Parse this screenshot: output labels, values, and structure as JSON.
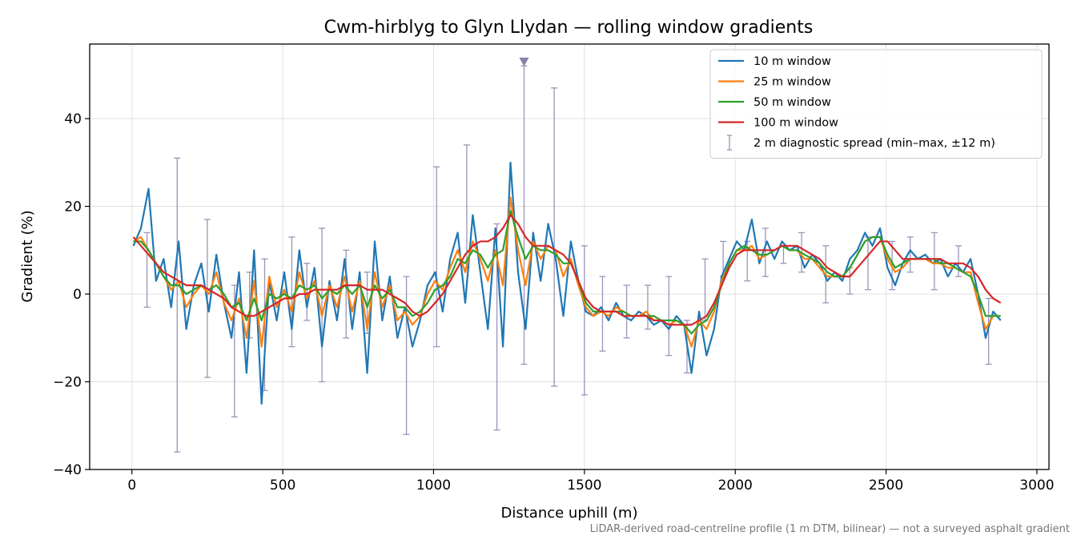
{
  "chart_data": {
    "type": "line",
    "title": "Cwm-hirblyg to Glyn Llydan — rolling window gradients",
    "xlabel": "Distance uphill (m)",
    "ylabel": "Gradient (%)",
    "footnote": "LiDAR-derived road-centreline profile (1 m DTM, bilinear) — not a surveyed asphalt gradient",
    "xlim": [
      -140,
      3040
    ],
    "ylim": [
      -40,
      57
    ],
    "x_ticks": [
      0,
      500,
      1000,
      1500,
      2000,
      2500,
      3000
    ],
    "x_tick_labels": [
      "0",
      "500",
      "1000",
      "1500",
      "2000",
      "2500",
      "3000"
    ],
    "y_ticks": [
      -40,
      -20,
      0,
      20,
      40
    ],
    "y_tick_labels": [
      "−40",
      "−20",
      "0",
      "20",
      "40"
    ],
    "grid": true,
    "legend_position": "top-right",
    "x": [
      5,
      30,
      55,
      80,
      105,
      130,
      155,
      180,
      205,
      230,
      255,
      280,
      305,
      330,
      355,
      380,
      405,
      430,
      455,
      480,
      505,
      530,
      555,
      580,
      605,
      630,
      655,
      680,
      705,
      730,
      755,
      780,
      805,
      830,
      855,
      880,
      905,
      930,
      955,
      980,
      1005,
      1030,
      1055,
      1080,
      1105,
      1130,
      1155,
      1180,
      1205,
      1230,
      1255,
      1280,
      1305,
      1330,
      1355,
      1380,
      1405,
      1430,
      1455,
      1480,
      1505,
      1530,
      1555,
      1580,
      1605,
      1630,
      1655,
      1680,
      1705,
      1730,
      1755,
      1780,
      1805,
      1830,
      1855,
      1880,
      1905,
      1930,
      1955,
      1980,
      2005,
      2030,
      2055,
      2080,
      2105,
      2130,
      2155,
      2180,
      2205,
      2230,
      2255,
      2280,
      2305,
      2330,
      2355,
      2380,
      2405,
      2430,
      2455,
      2480,
      2505,
      2530,
      2555,
      2580,
      2605,
      2630,
      2655,
      2680,
      2705,
      2730,
      2755,
      2780,
      2805,
      2830,
      2855,
      2880
    ],
    "series": [
      {
        "name": "10 m window",
        "color": "#1f77b4",
        "values": [
          11,
          15,
          24,
          3,
          8,
          -3,
          12,
          -8,
          2,
          7,
          -4,
          9,
          -2,
          -10,
          5,
          -18,
          10,
          -25,
          3,
          -6,
          5,
          -8,
          10,
          -3,
          6,
          -12,
          3,
          -6,
          8,
          -8,
          5,
          -18,
          12,
          -6,
          4,
          -10,
          -3,
          -12,
          -6,
          2,
          5,
          -4,
          8,
          14,
          -2,
          18,
          5,
          -8,
          15,
          -12,
          30,
          5,
          -8,
          14,
          3,
          16,
          8,
          -5,
          12,
          3,
          -4,
          -5,
          -3,
          -6,
          -2,
          -5,
          -6,
          -4,
          -5,
          -7,
          -6,
          -8,
          -5,
          -7,
          -18,
          -4,
          -14,
          -8,
          4,
          8,
          12,
          10,
          17,
          7,
          12,
          8,
          12,
          10,
          11,
          6,
          9,
          7,
          3,
          5,
          3,
          8,
          10,
          14,
          11,
          15,
          6,
          2,
          7,
          10,
          8,
          9,
          7,
          8,
          4,
          7,
          5,
          8,
          0,
          -10,
          -4,
          -6
        ]
      },
      {
        "name": "25 m window",
        "color": "#ff7f0e",
        "values": [
          12,
          13,
          10,
          7,
          4,
          1,
          3,
          -3,
          0,
          2,
          0,
          5,
          -2,
          -6,
          -1,
          -10,
          3,
          -12,
          4,
          -3,
          1,
          -4,
          5,
          -1,
          3,
          -5,
          2,
          -3,
          4,
          -4,
          3,
          -8,
          5,
          -3,
          2,
          -6,
          -4,
          -7,
          -5,
          0,
          3,
          1,
          6,
          10,
          5,
          12,
          8,
          3,
          10,
          2,
          22,
          10,
          2,
          12,
          8,
          11,
          10,
          4,
          8,
          2,
          -3,
          -5,
          -4,
          -5,
          -3,
          -4,
          -5,
          -5,
          -4,
          -6,
          -6,
          -7,
          -6,
          -7,
          -12,
          -6,
          -8,
          -4,
          3,
          7,
          10,
          10,
          11,
          8,
          9,
          10,
          11,
          10,
          10,
          8,
          8,
          6,
          4,
          4,
          4,
          6,
          9,
          12,
          13,
          13,
          8,
          5,
          6,
          8,
          8,
          8,
          7,
          7,
          6,
          6,
          5,
          5,
          -2,
          -8,
          -5,
          -5
        ]
      },
      {
        "name": "50 m window",
        "color": "#2ca02c",
        "values": [
          12,
          12,
          10,
          7,
          4,
          2,
          2,
          0,
          1,
          2,
          1,
          2,
          0,
          -3,
          -2,
          -6,
          -1,
          -6,
          0,
          -1,
          0,
          -1,
          2,
          1,
          2,
          -1,
          1,
          0,
          2,
          0,
          2,
          -3,
          2,
          -1,
          1,
          -3,
          -3,
          -5,
          -4,
          -2,
          1,
          2,
          4,
          8,
          7,
          10,
          9,
          6,
          9,
          10,
          19,
          13,
          8,
          11,
          10,
          10,
          9,
          7,
          7,
          3,
          -2,
          -4,
          -4,
          -4,
          -4,
          -4,
          -5,
          -5,
          -5,
          -5,
          -6,
          -6,
          -6,
          -7,
          -9,
          -7,
          -6,
          -3,
          2,
          7,
          10,
          11,
          10,
          9,
          9,
          10,
          11,
          10,
          10,
          9,
          8,
          7,
          5,
          4,
          4,
          6,
          9,
          12,
          13,
          13,
          9,
          6,
          7,
          8,
          8,
          8,
          8,
          7,
          7,
          6,
          5,
          4,
          0,
          -5,
          -5,
          -5
        ]
      },
      {
        "name": "100 m window",
        "color": "#d62728",
        "values": [
          13,
          11,
          9,
          7,
          5,
          4,
          3,
          2,
          2,
          2,
          1,
          0,
          -1,
          -3,
          -4,
          -5,
          -5,
          -4,
          -3,
          -2,
          -1,
          -1,
          0,
          0,
          1,
          1,
          1,
          1,
          2,
          2,
          2,
          1,
          1,
          1,
          0,
          -1,
          -2,
          -4,
          -5,
          -4,
          -2,
          0,
          3,
          6,
          9,
          11,
          12,
          12,
          13,
          15,
          18,
          16,
          13,
          11,
          11,
          11,
          10,
          9,
          7,
          3,
          -1,
          -3,
          -4,
          -4,
          -4,
          -5,
          -5,
          -5,
          -5,
          -6,
          -6,
          -7,
          -7,
          -7,
          -7,
          -6,
          -5,
          -2,
          2,
          6,
          9,
          10,
          10,
          10,
          10,
          10,
          11,
          11,
          11,
          10,
          9,
          8,
          6,
          5,
          4,
          4,
          6,
          8,
          10,
          12,
          12,
          10,
          8,
          8,
          8,
          8,
          8,
          8,
          7,
          7,
          7,
          6,
          4,
          1,
          -1,
          -2
        ]
      }
    ],
    "diagnostic": {
      "name": "2 m diagnostic spread (min–max, ±12 m)",
      "color": "#9a94b8",
      "x": [
        50,
        150,
        250,
        340,
        390,
        440,
        530,
        580,
        630,
        710,
        780,
        910,
        1010,
        1110,
        1210,
        1300,
        1400,
        1500,
        1560,
        1640,
        1710,
        1780,
        1840,
        1900,
        1960,
        2040,
        2100,
        2160,
        2220,
        2300,
        2380,
        2440,
        2520,
        2580,
        2660,
        2740,
        2840
      ],
      "low": [
        -3,
        -36,
        -19,
        -28,
        -10,
        -22,
        -12,
        -6,
        -20,
        -10,
        -9,
        -32,
        -12,
        6,
        -31,
        -16,
        -21,
        -23,
        -13,
        -10,
        -8,
        -14,
        -18,
        -6,
        4,
        3,
        4,
        7,
        5,
        -2,
        0,
        1,
        1,
        5,
        1,
        4,
        -16
      ],
      "high": [
        14,
        31,
        17,
        2,
        5,
        8,
        13,
        7,
        15,
        10,
        5,
        4,
        29,
        34,
        16,
        52,
        47,
        11,
        4,
        2,
        2,
        4,
        -6,
        8,
        12,
        12,
        15,
        11,
        14,
        11,
        6,
        13,
        12,
        13,
        14,
        11,
        -1
      ]
    },
    "annotation": {
      "x": 1300,
      "y": 53,
      "marker": "triangle-down"
    }
  }
}
